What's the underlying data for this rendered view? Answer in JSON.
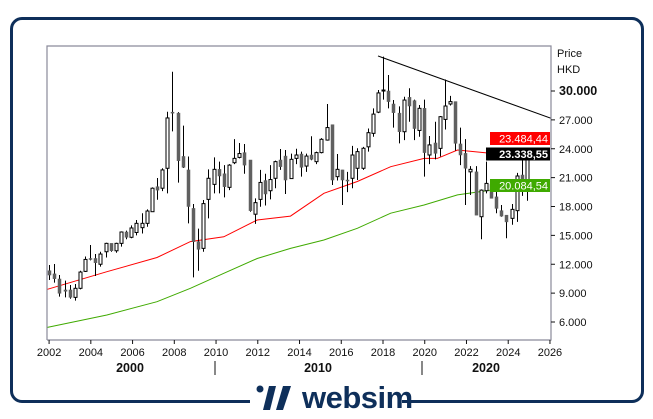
{
  "chart_data": {
    "type": "candlestick",
    "ylabel": "Price",
    "currency": "HKD",
    "ylim": [
      4.1,
      34.7
    ],
    "xlim": [
      2001.9,
      2026.05
    ],
    "grid": false,
    "y_ticks": [
      "30.000",
      "27.000",
      "24.000",
      "21.000",
      "18.000",
      "15.000",
      "12.000",
      "9.000",
      "6.000"
    ],
    "y_tick_values": [
      30,
      27,
      24,
      21,
      18,
      15,
      12,
      9,
      6
    ],
    "bold_y_tick": "30.000",
    "x_ticks": [
      "2002",
      "2004",
      "2006",
      "2008",
      "2010",
      "2012",
      "2014",
      "2016",
      "2018",
      "2020",
      "2022",
      "2024",
      "2026"
    ],
    "decade_labels": [
      "2000",
      "2010",
      "2020"
    ],
    "candles_first_x": 2002.0,
    "candles_last_x": 2024.9,
    "ohlc": [
      [
        11.33,
        11.92,
        10.37,
        10.88
      ],
      [
        11.0,
        12.03,
        10.09,
        10.5
      ],
      [
        10.47,
        10.88,
        8.63,
        8.98
      ],
      [
        9.33,
        10.3,
        8.56,
        9.19
      ],
      [
        9.33,
        9.85,
        8.42,
        8.56
      ],
      [
        8.56,
        9.95,
        8.22,
        9.5
      ],
      [
        9.5,
        11.33,
        9.39,
        11.19
      ],
      [
        11.26,
        12.8,
        11.2,
        12.5
      ],
      [
        12.6,
        14.0,
        12.4,
        12.55
      ],
      [
        12.6,
        13.06,
        10.78,
        12.16
      ],
      [
        12.0,
        13.3,
        11.75,
        13.06
      ],
      [
        13.3,
        14.24,
        12.7,
        14.17
      ],
      [
        14.17,
        14.17,
        13.3,
        13.4
      ],
      [
        13.4,
        14.24,
        13.2,
        14.17
      ],
      [
        14.17,
        15.42,
        13.83,
        15.35
      ],
      [
        15.35,
        15.5,
        14.6,
        14.8
      ],
      [
        14.8,
        16.04,
        14.7,
        15.77
      ],
      [
        15.3,
        16.6,
        15.0,
        16.25
      ],
      [
        15.8,
        17.3,
        15.2,
        16.25
      ],
      [
        16.25,
        17.7,
        15.9,
        17.53
      ],
      [
        17.46,
        19.99,
        17.46,
        19.9
      ],
      [
        20.06,
        20.96,
        18.7,
        19.7
      ],
      [
        19.9,
        21.97,
        19.6,
        21.8
      ],
      [
        21.97,
        27.85,
        19.37,
        27.2
      ],
      [
        27.8,
        32.0,
        25.8,
        27.75
      ],
      [
        27.7,
        27.8,
        20.48,
        22.76
      ],
      [
        23.2,
        26.4,
        22.0,
        22.07
      ],
      [
        21.8,
        23.2,
        16.25,
        18.0
      ],
      [
        17.8,
        18.26,
        10.64,
        14.35
      ],
      [
        14.35,
        15.7,
        11.33,
        13.55
      ],
      [
        13.65,
        18.67,
        13.3,
        18.3
      ],
      [
        18.74,
        21.86,
        16.77,
        20.93
      ],
      [
        20.3,
        23.1,
        19.37,
        21.86
      ],
      [
        21.86,
        22.66,
        19.37,
        21.17
      ],
      [
        21.4,
        22.3,
        18.95,
        20.06
      ],
      [
        19.99,
        22.4,
        19.7,
        22.3
      ],
      [
        22.55,
        25.0,
        22.4,
        23.0
      ],
      [
        23.1,
        24.6,
        23.0,
        23.5
      ],
      [
        23.6,
        24.5,
        21.4,
        22.3
      ],
      [
        22.83,
        22.83,
        17.46,
        17.57
      ],
      [
        17.2,
        18.85,
        16.2,
        18.4
      ],
      [
        18.74,
        21.8,
        17.98,
        20.5
      ],
      [
        20.7,
        21.4,
        18.1,
        19.3
      ],
      [
        19.64,
        22.3,
        18.74,
        20.8
      ],
      [
        20.93,
        22.76,
        19.9,
        22.66
      ],
      [
        22.83,
        23.97,
        21.8,
        22.14
      ],
      [
        23.24,
        23.87,
        19.3,
        20.75
      ],
      [
        20.9,
        23.5,
        20.9,
        22.9
      ],
      [
        23.0,
        24.0,
        22.4,
        23.35
      ],
      [
        23.45,
        23.7,
        21.1,
        22.07
      ],
      [
        22.2,
        23.5,
        21.6,
        23.24
      ],
      [
        23.35,
        25.3,
        22.8,
        22.9
      ],
      [
        22.66,
        23.7,
        22.4,
        23.6
      ],
      [
        23.6,
        25.1,
        23.52,
        24.98
      ],
      [
        24.9,
        28.65,
        24.84,
        26.2
      ],
      [
        26.5,
        26.5,
        20.23,
        20.75
      ],
      [
        21.1,
        23.45,
        20.7,
        21.86
      ],
      [
        21.8,
        21.8,
        18.16,
        20.75
      ],
      [
        20.75,
        21.6,
        19.5,
        20.7
      ],
      [
        20.93,
        24.3,
        19.9,
        23.35
      ],
      [
        21.97,
        24.05,
        20.75,
        23.7
      ],
      [
        21.97,
        24.2,
        21.8,
        24.05
      ],
      [
        24.2,
        26.1,
        23.7,
        25.67
      ],
      [
        25.6,
        28.2,
        25.25,
        27.6
      ],
      [
        27.8,
        30.1,
        27.7,
        29.8
      ],
      [
        30.05,
        33.57,
        29.1,
        30.1
      ],
      [
        30.0,
        31.66,
        28.2,
        28.9
      ],
      [
        28.65,
        29.06,
        26.2,
        27.75
      ],
      [
        27.7,
        28.4,
        24.56,
        25.77
      ],
      [
        25.77,
        29.4,
        24.9,
        29.06
      ],
      [
        29.34,
        30.28,
        26.8,
        28.44
      ],
      [
        29.0,
        29.1,
        24.9,
        26.1
      ],
      [
        25.9,
        28.55,
        25.25,
        28.2
      ],
      [
        28.2,
        29.1,
        21.1,
        23.6
      ],
      [
        23.35,
        25.32,
        22.4,
        24.4
      ],
      [
        24.6,
        26.8,
        22.9,
        23.52
      ],
      [
        24.04,
        27.4,
        23.2,
        27.33
      ],
      [
        27.05,
        31.2,
        26.0,
        28.44
      ],
      [
        28.65,
        29.5,
        28.5,
        28.9
      ],
      [
        28.9,
        28.9,
        23.8,
        24.56
      ],
      [
        24.5,
        26.2,
        22.3,
        23.35
      ],
      [
        23.52,
        25.0,
        18.16,
        21.97
      ],
      [
        21.6,
        22.2,
        19.2,
        21.86
      ],
      [
        21.6,
        22.2,
        17.1,
        17.1
      ],
      [
        16.94,
        19.78,
        14.6,
        19.7
      ],
      [
        19.64,
        22.66,
        19.37,
        20.4
      ],
      [
        20.3,
        20.8,
        18.85,
        18.85
      ],
      [
        19.0,
        20.75,
        17.3,
        17.8
      ],
      [
        17.57,
        18.16,
        16.94,
        17.0
      ],
      [
        17.1,
        17.1,
        14.7,
        16.4
      ],
      [
        16.77,
        18.26,
        16.1,
        17.7
      ],
      [
        17.57,
        21.5,
        16.4,
        21.17
      ],
      [
        21.27,
        23.35,
        19.1,
        20.06
      ],
      [
        19.9,
        23.35,
        18.6,
        23.35
      ]
    ],
    "moving_averages": [
      {
        "color": "#ff0000",
        "last_label": "23.484,44",
        "points": [
          [
            2001.92,
            9.4
          ],
          [
            2004.77,
            11.23
          ],
          [
            2007.17,
            12.7
          ],
          [
            2008.77,
            14.35
          ],
          [
            2010.37,
            14.85
          ],
          [
            2011.97,
            16.6
          ],
          [
            2013.57,
            17.0
          ],
          [
            2015.17,
            19.37
          ],
          [
            2016.77,
            20.6
          ],
          [
            2018.37,
            22.14
          ],
          [
            2019.97,
            23.0
          ],
          [
            2020.6,
            23.0
          ],
          [
            2021.57,
            23.87
          ],
          [
            2023.5,
            23.45
          ],
          [
            2024.85,
            23.45
          ]
        ]
      },
      {
        "color": "#3faa00",
        "last_label": "20.084,54",
        "points": [
          [
            2001.92,
            5.44
          ],
          [
            2004.77,
            6.73
          ],
          [
            2007.17,
            8.11
          ],
          [
            2008.77,
            9.5
          ],
          [
            2010.37,
            11.06
          ],
          [
            2011.97,
            12.6
          ],
          [
            2013.57,
            13.65
          ],
          [
            2015.17,
            14.52
          ],
          [
            2016.77,
            15.73
          ],
          [
            2018.37,
            17.3
          ],
          [
            2019.97,
            18.16
          ],
          [
            2021.57,
            19.2
          ],
          [
            2023.17,
            19.7
          ],
          [
            2024.85,
            20.06
          ]
        ]
      }
    ],
    "trendline": {
      "color": "#000000",
      "points": [
        [
          2017.76,
          33.64
        ],
        [
          2026.05,
          27.16
        ]
      ]
    },
    "last_price_label": "23.338,55",
    "colors": {
      "up_body": "#ffffff",
      "down_body": "#606060",
      "wick": "#000000",
      "frame": "#0e2f5a",
      "axis": "#8a8a9a"
    }
  },
  "brand": {
    "name": "websim"
  }
}
